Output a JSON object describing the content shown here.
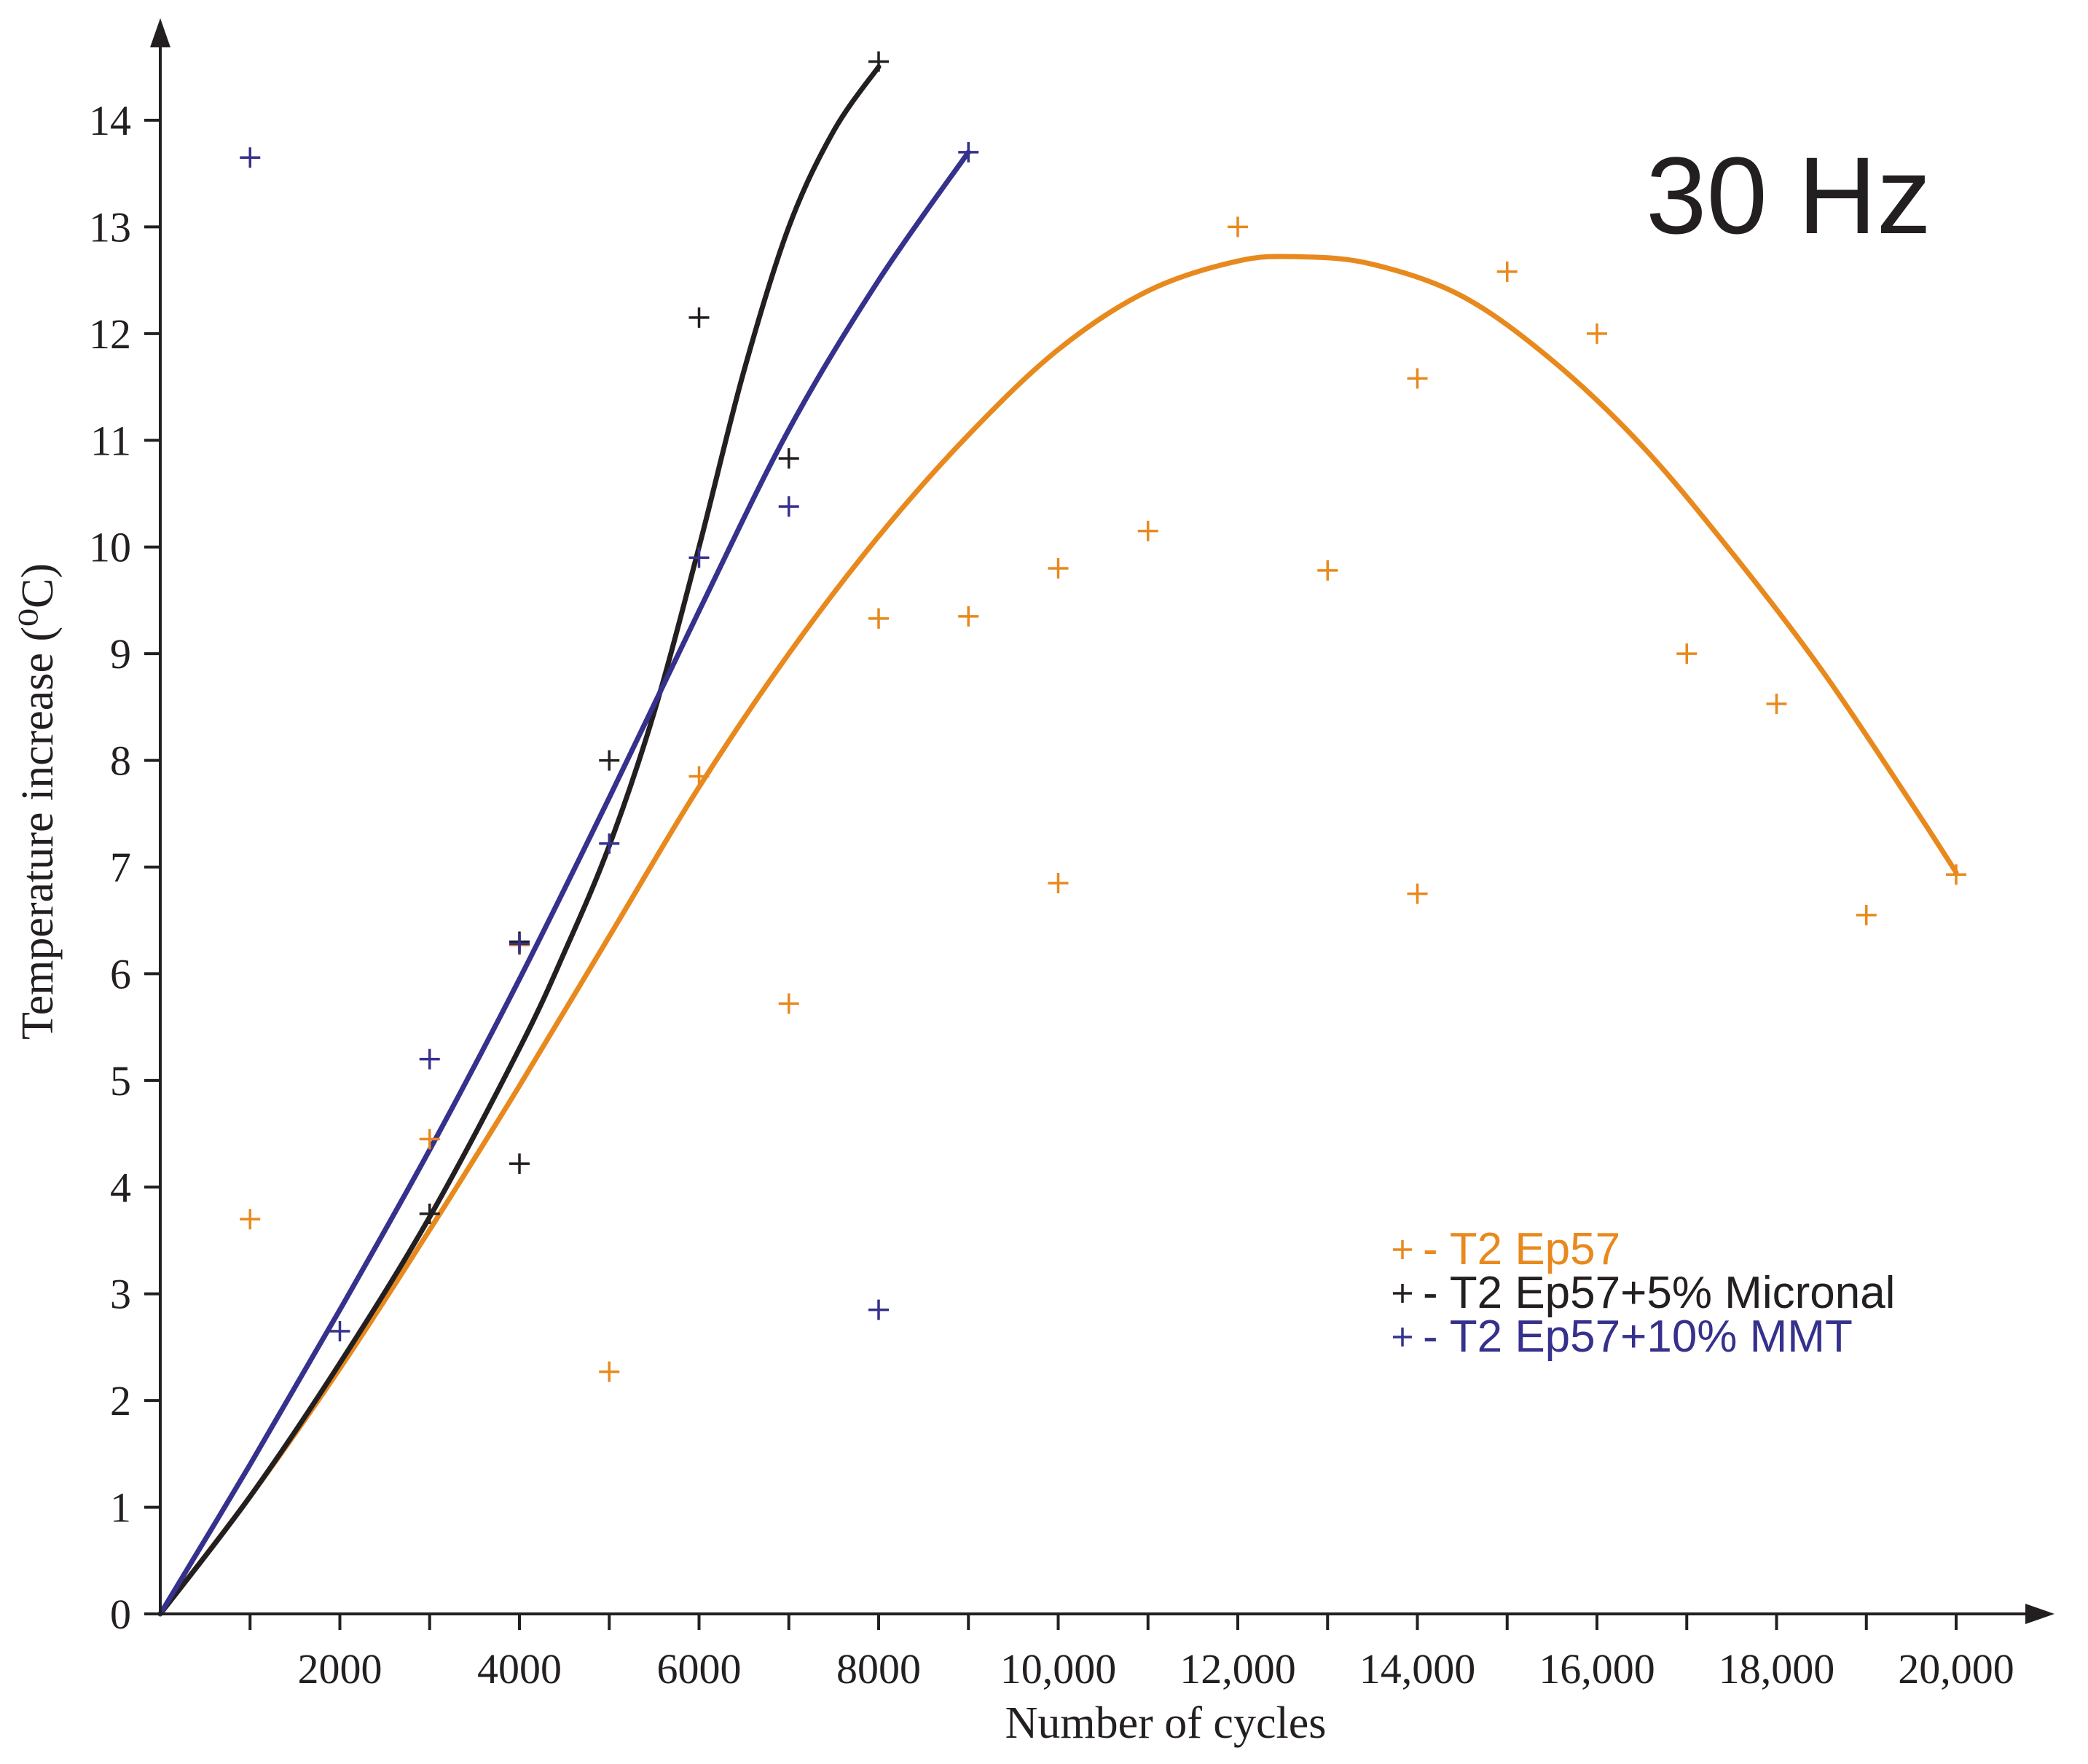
{
  "chart_data": {
    "type": "scatter",
    "title": "",
    "annotation": "30 Hz",
    "xlabel": "Number of cycles",
    "ylabel": "Temperature increase (⁰C)",
    "xlim": [
      0,
      21000
    ],
    "ylim": [
      0,
      14.9
    ],
    "grid": false,
    "legend_position": "lower-right",
    "x_ticks": [
      1000,
      2000,
      3000,
      4000,
      5000,
      6000,
      7000,
      8000,
      9000,
      10000,
      11000,
      12000,
      13000,
      14000,
      15000,
      16000,
      17000,
      18000,
      19000,
      20000
    ],
    "x_tick_labels": [
      {
        "value": 2000,
        "label": "2000"
      },
      {
        "value": 4000,
        "label": "4000"
      },
      {
        "value": 6000,
        "label": "6000"
      },
      {
        "value": 8000,
        "label": "8000"
      },
      {
        "value": 10000,
        "label": "10,000"
      },
      {
        "value": 12000,
        "label": "12,000"
      },
      {
        "value": 14000,
        "label": "14,000"
      },
      {
        "value": 16000,
        "label": "16,000"
      },
      {
        "value": 18000,
        "label": "18,000"
      },
      {
        "value": 20000,
        "label": "20,000"
      }
    ],
    "y_ticks": [
      0,
      1,
      2,
      3,
      4,
      5,
      6,
      7,
      8,
      9,
      10,
      11,
      12,
      13,
      14
    ],
    "y_tick_labels": [
      "0",
      "1",
      "2",
      "3",
      "4",
      "5",
      "6",
      "7",
      "8",
      "9",
      "10",
      "11",
      "12",
      "13",
      "14"
    ],
    "series": [
      {
        "name": "T2 Ep57",
        "legend_label": "- T2 Ep57",
        "color": "#e8891e",
        "points": [
          [
            1000,
            3.7
          ],
          [
            3000,
            4.45
          ],
          [
            4000,
            6.27
          ],
          [
            5000,
            2.27
          ],
          [
            6000,
            7.85
          ],
          [
            7000,
            5.72
          ],
          [
            8000,
            9.33
          ],
          [
            9000,
            9.35
          ],
          [
            10000,
            9.8
          ],
          [
            10000,
            6.85
          ],
          [
            11000,
            10.15
          ],
          [
            12000,
            13.0
          ],
          [
            13000,
            9.78
          ],
          [
            14000,
            11.58
          ],
          [
            14000,
            6.75
          ],
          [
            15000,
            12.58
          ],
          [
            16000,
            12.0
          ],
          [
            17000,
            9.0
          ],
          [
            18000,
            8.53
          ],
          [
            19000,
            6.55
          ],
          [
            20000,
            6.93
          ]
        ],
        "fit_curve": [
          [
            0,
            0
          ],
          [
            1000,
            1.1
          ],
          [
            2000,
            2.3
          ],
          [
            3000,
            3.6
          ],
          [
            4000,
            4.95
          ],
          [
            5000,
            6.35
          ],
          [
            6000,
            7.75
          ],
          [
            7000,
            9.0
          ],
          [
            8000,
            10.1
          ],
          [
            9000,
            11.05
          ],
          [
            10000,
            11.85
          ],
          [
            11000,
            12.4
          ],
          [
            12000,
            12.68
          ],
          [
            12700,
            12.72
          ],
          [
            13500,
            12.65
          ],
          [
            14500,
            12.35
          ],
          [
            15500,
            11.75
          ],
          [
            16500,
            10.95
          ],
          [
            17500,
            9.95
          ],
          [
            18500,
            8.85
          ],
          [
            19500,
            7.6
          ],
          [
            20000,
            6.95
          ]
        ]
      },
      {
        "name": "T2 Ep57+5% Micronal",
        "legend_label": "- T2 Ep57+5% Micronal",
        "color": "#231f20",
        "points": [
          [
            3000,
            3.75
          ],
          [
            4000,
            4.22
          ],
          [
            4000,
            6.3
          ],
          [
            5000,
            8.0
          ],
          [
            6000,
            12.15
          ],
          [
            7000,
            10.83
          ],
          [
            8000,
            14.55
          ]
        ],
        "fit_curve": [
          [
            0,
            0
          ],
          [
            1000,
            1.1
          ],
          [
            2000,
            2.35
          ],
          [
            3000,
            3.72
          ],
          [
            4000,
            5.3
          ],
          [
            4500,
            6.2
          ],
          [
            5000,
            7.2
          ],
          [
            5500,
            8.45
          ],
          [
            6000,
            10.0
          ],
          [
            6500,
            11.65
          ],
          [
            7000,
            13.0
          ],
          [
            7500,
            13.9
          ],
          [
            8000,
            14.5
          ]
        ]
      },
      {
        "name": "T2 Ep57+10% MMT",
        "legend_label": "- T2 Ep57+10% MMT",
        "color": "#35318c",
        "points": [
          [
            1000,
            13.65
          ],
          [
            2000,
            2.65
          ],
          [
            3000,
            5.2
          ],
          [
            4000,
            6.28
          ],
          [
            5000,
            7.22
          ],
          [
            6000,
            9.9
          ],
          [
            7000,
            10.38
          ],
          [
            8000,
            2.85
          ],
          [
            9000,
            13.7
          ]
        ],
        "fit_curve": [
          [
            0,
            0
          ],
          [
            1000,
            1.4
          ],
          [
            2000,
            2.85
          ],
          [
            3000,
            4.35
          ],
          [
            4000,
            5.95
          ],
          [
            5000,
            7.65
          ],
          [
            6000,
            9.4
          ],
          [
            7000,
            11.1
          ],
          [
            8000,
            12.5
          ],
          [
            9000,
            13.7
          ]
        ]
      }
    ]
  }
}
